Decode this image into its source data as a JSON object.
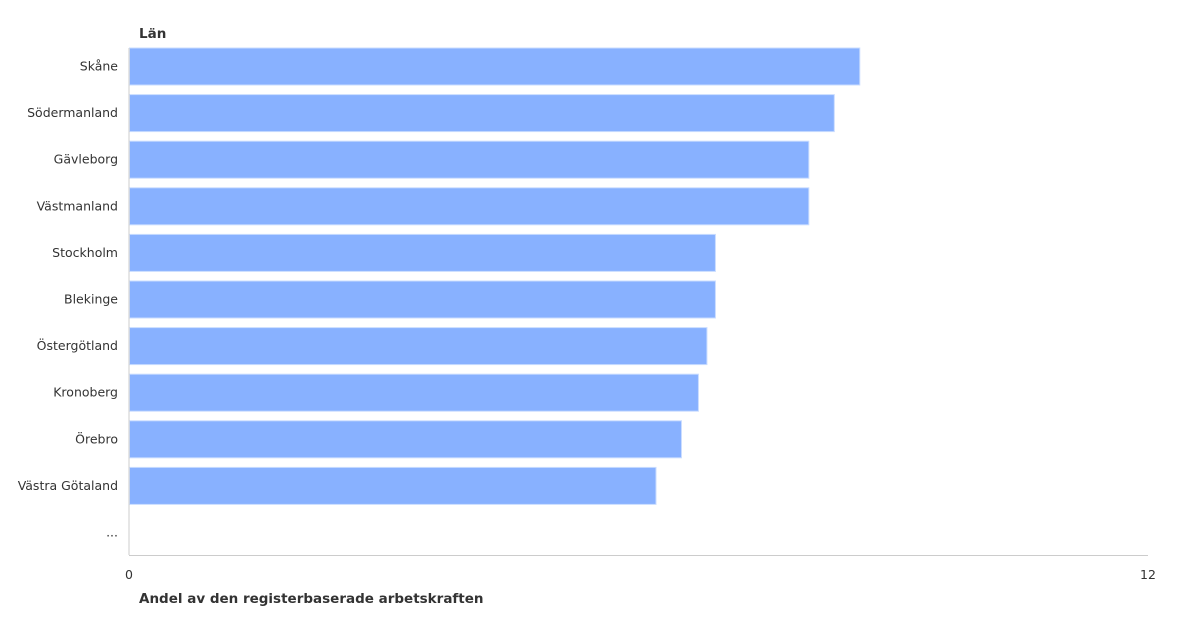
{
  "chart_data": {
    "type": "bar",
    "orientation": "horizontal",
    "ytitle": "Län",
    "xlabel": "Andel av den registerbaserade arbetskraften",
    "categories": [
      "Skåne",
      "Södermanland",
      "Gävleborg",
      "Västmanland",
      "Stockholm",
      "Blekinge",
      "Östergötland",
      "Kronoberg",
      "Örebro",
      "Västra Götaland",
      "..."
    ],
    "values": [
      8.6,
      8.3,
      8.0,
      8.0,
      6.9,
      6.9,
      6.8,
      6.7,
      6.5,
      6.2,
      null
    ],
    "xlim": [
      0,
      12
    ],
    "xticks": [
      "0",
      "12"
    ],
    "grid": false,
    "bar_color": "#88b1ff"
  }
}
